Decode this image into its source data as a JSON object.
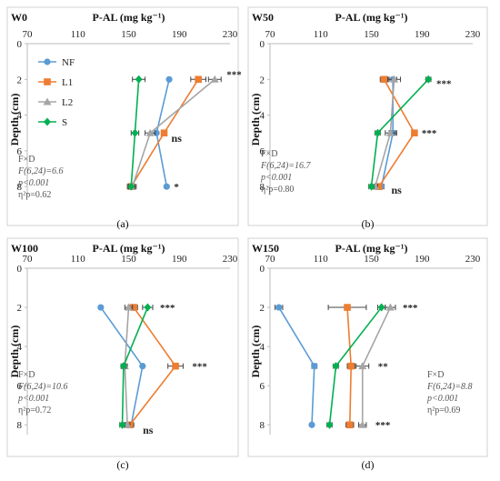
{
  "legend": [
    {
      "name": "NF",
      "color": "#5b9bd5",
      "marker": "circle"
    },
    {
      "name": "L1",
      "color": "#ed7d31",
      "marker": "square"
    },
    {
      "name": "L2",
      "color": "#a5a5a5",
      "marker": "triangle"
    },
    {
      "name": "S",
      "color": "#00b050",
      "marker": "diamond"
    }
  ],
  "chart_data": [
    {
      "type": "line",
      "panel": "W0",
      "caption": "(a)",
      "xlabel": "P-AL (mg kg⁻¹)",
      "ylabel": "Depth (cm)",
      "x_ticks": [
        70,
        110,
        150,
        190,
        230
      ],
      "y_ticks": [
        0,
        2,
        4,
        6,
        8
      ],
      "xlim": [
        70,
        230
      ],
      "ylim": [
        0,
        8.5
      ],
      "depths": [
        2,
        5,
        8
      ],
      "series": [
        {
          "name": "NF",
          "x": [
            182,
            172,
            180
          ],
          "err": [
            0,
            0,
            0
          ]
        },
        {
          "name": "L1",
          "x": [
            205,
            178,
            152
          ],
          "err": [
            6,
            0,
            0
          ]
        },
        {
          "name": "L2",
          "x": [
            218,
            167,
            153
          ],
          "err": [
            5,
            4,
            3
          ]
        },
        {
          "name": "S",
          "x": [
            158,
            155,
            152
          ],
          "err": [
            5,
            3,
            3
          ]
        }
      ],
      "significance": [
        {
          "depth": 2,
          "text": "***"
        },
        {
          "depth": 5,
          "text": "ns"
        },
        {
          "depth": 8,
          "text": "*"
        }
      ],
      "stats": [
        "F×D",
        "F(6,24)=6.6",
        "p<0.001",
        "η²p=0.62"
      ]
    },
    {
      "type": "line",
      "panel": "W50",
      "caption": "(b)",
      "xlabel": "P-AL (mg kg⁻¹)",
      "ylabel": "Depth (cm)",
      "x_ticks": [
        70,
        110,
        150,
        190,
        230
      ],
      "y_ticks": [
        0,
        2,
        4,
        6,
        8
      ],
      "xlim": [
        70,
        230
      ],
      "ylim": [
        0,
        8.5
      ],
      "depths": [
        2,
        5,
        8
      ],
      "series": [
        {
          "name": "NF",
          "x": [
            167,
            167,
            158
          ],
          "err": [
            3,
            3,
            2
          ]
        },
        {
          "name": "L1",
          "x": [
            160,
            184,
            156
          ],
          "err": [
            3,
            0,
            2
          ]
        },
        {
          "name": "L2",
          "x": [
            168,
            165,
            153
          ],
          "err": [
            5,
            4,
            2
          ]
        },
        {
          "name": "S",
          "x": [
            195,
            155,
            150
          ],
          "err": [
            2,
            2,
            2
          ]
        }
      ],
      "significance": [
        {
          "depth": 2,
          "text": "***"
        },
        {
          "depth": 5,
          "text": "***"
        },
        {
          "depth": 8,
          "text": "ns"
        }
      ],
      "stats": [
        "F×D",
        "F(6,24)=16.7",
        "p<0.001",
        "η²p=0.80"
      ]
    },
    {
      "type": "line",
      "panel": "W100",
      "caption": "(c)",
      "xlabel": "P-AL (mg kg⁻¹)",
      "ylabel": "Depth (cm)",
      "x_ticks": [
        70,
        110,
        150,
        190,
        230
      ],
      "y_ticks": [
        0,
        2,
        4,
        6,
        8
      ],
      "xlim": [
        70,
        230
      ],
      "ylim": [
        0,
        8.5
      ],
      "depths": [
        2,
        5,
        8
      ],
      "series": [
        {
          "name": "NF",
          "x": [
            128,
            161,
            152
          ],
          "err": [
            0,
            0,
            0
          ]
        },
        {
          "name": "L1",
          "x": [
            154,
            187,
            151
          ],
          "err": [
            3,
            6,
            3
          ]
        },
        {
          "name": "L2",
          "x": [
            150,
            147,
            149
          ],
          "err": [
            3,
            2,
            2
          ]
        },
        {
          "name": "S",
          "x": [
            165,
            146,
            145
          ],
          "err": [
            4,
            2,
            2
          ]
        }
      ],
      "significance": [
        {
          "depth": 2,
          "text": "***"
        },
        {
          "depth": 5,
          "text": "***"
        },
        {
          "depth": 8,
          "text": "ns"
        }
      ],
      "stats": [
        "F×D",
        "F(6,24)=10.6",
        "p<0.001",
        "η²p=0.72"
      ]
    },
    {
      "type": "line",
      "panel": "W150",
      "caption": "(d)",
      "xlabel": "P-AL (mg kg⁻¹)",
      "ylabel": "Depth (cm)",
      "x_ticks": [
        70,
        110,
        150,
        190,
        230
      ],
      "y_ticks": [
        0,
        2,
        4,
        6,
        8
      ],
      "xlim": [
        70,
        230
      ],
      "ylim": [
        0,
        8.5
      ],
      "depths": [
        2,
        5,
        8
      ],
      "series": [
        {
          "name": "NF",
          "x": [
            77,
            105,
            103
          ],
          "err": [
            3,
            2,
            0
          ]
        },
        {
          "name": "L1",
          "x": [
            131,
            134,
            133
          ],
          "err": [
            15,
            3,
            3
          ]
        },
        {
          "name": "L2",
          "x": [
            165,
            143,
            143
          ],
          "err": [
            4,
            5,
            3
          ]
        },
        {
          "name": "S",
          "x": [
            158,
            122,
            117
          ],
          "err": [
            3,
            2,
            2
          ]
        }
      ],
      "significance": [
        {
          "depth": 2,
          "text": "***"
        },
        {
          "depth": 5,
          "text": "**"
        },
        {
          "depth": 8,
          "text": "***"
        }
      ],
      "stats": [
        "F×D",
        "F(6,24)=8.8",
        "p<0.001",
        "η²p=0.69"
      ]
    }
  ]
}
